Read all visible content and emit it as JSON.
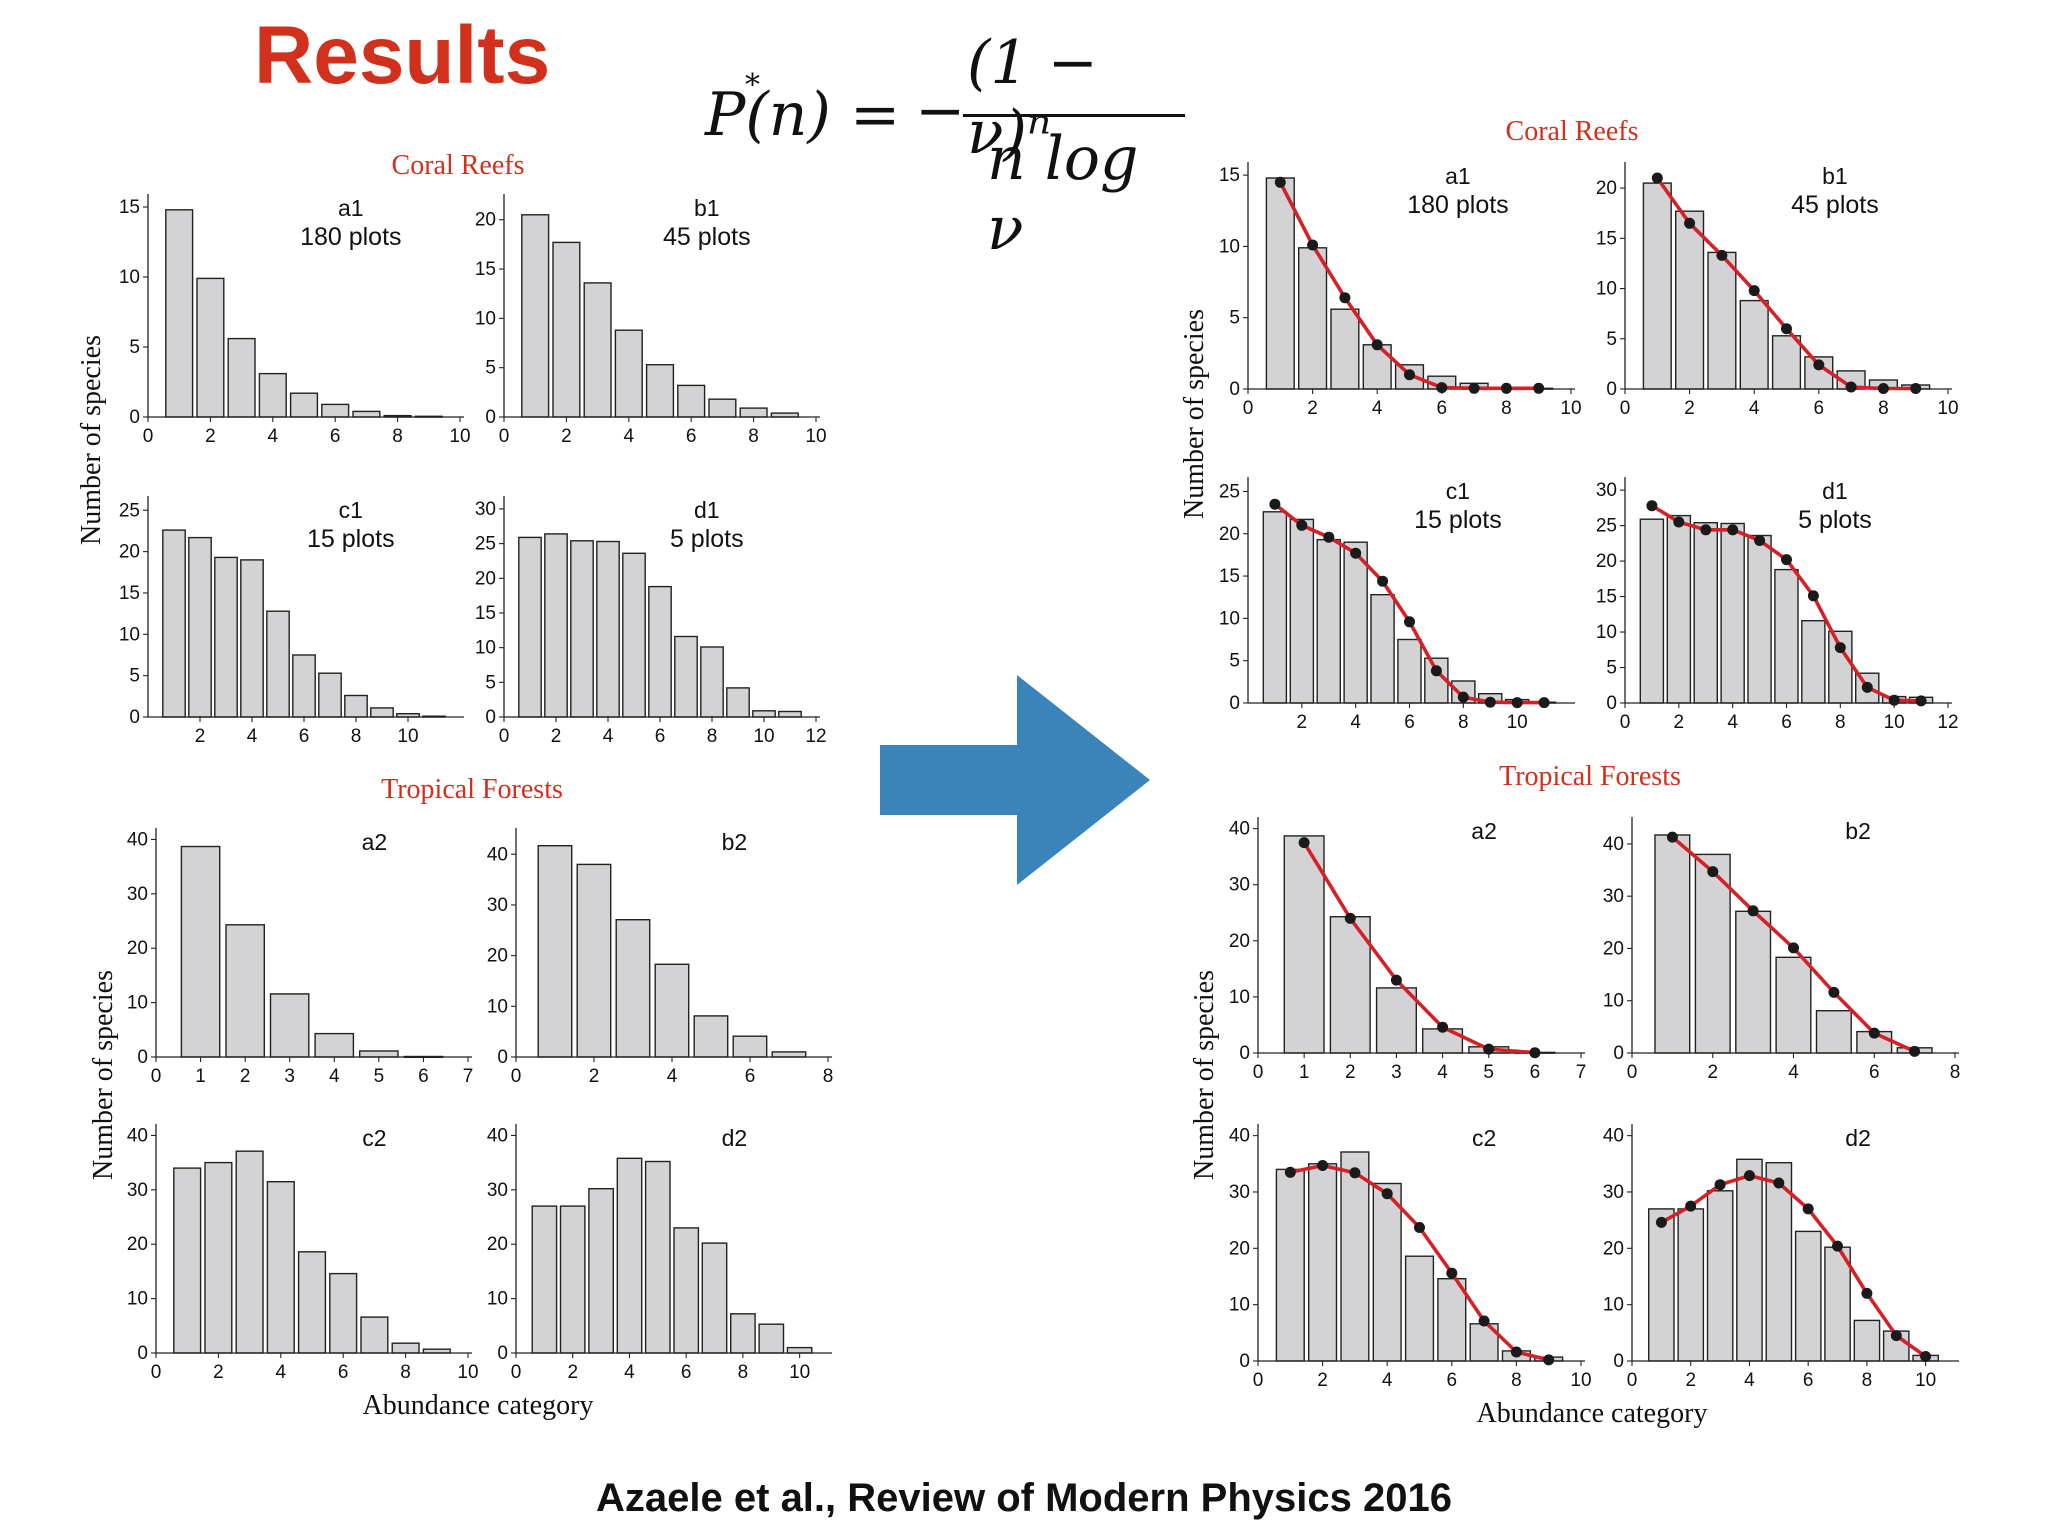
{
  "slide": {
    "title": "Results",
    "title_color": "#d0301c",
    "citation": "Azaele et al., Review of Modern Physics 2016"
  },
  "formula": {
    "lhs": "P(n)",
    "star": "*",
    "equals": "=",
    "minus": "−",
    "numerator": "(1 − ν)ⁿ",
    "denominator": "n log ν"
  },
  "style": {
    "section_color": "#d0301c",
    "bar_fill": "#d3d3d5",
    "bar_stroke": "#222222",
    "fit_color": "#d42027",
    "point_color": "#1a1a1a",
    "arrow_color": "#3a84bb"
  },
  "figures": [
    {
      "side": "left",
      "sections": [
        "Coral Reefs",
        "Tropical Forests"
      ],
      "ylabel": "Number of species",
      "xlabel": "Abundance category"
    },
    {
      "side": "right",
      "sections": [
        "Coral Reefs",
        "Tropical Forests"
      ],
      "ylabel": "Number of species",
      "xlabel": "Abundance category"
    }
  ],
  "chart_data": [
    {
      "id": "a1",
      "type": "bar",
      "label": "a1",
      "sublabel": "180 plots",
      "x": [
        1,
        2,
        3,
        4,
        5,
        6,
        7,
        8,
        9
      ],
      "values": [
        14.8,
        9.9,
        5.6,
        3.1,
        1.7,
        0.9,
        0.4,
        0.1,
        0.05
      ],
      "xlim": [
        0,
        10
      ],
      "ylim": [
        0,
        15.5
      ],
      "xticks": [
        0,
        2,
        4,
        6,
        8,
        10
      ],
      "yticks": [
        0,
        5,
        10,
        15
      ],
      "fit": [
        14.5,
        10.1,
        6.4,
        3.1,
        1.0,
        0.1,
        0.05,
        0.05,
        0.05
      ]
    },
    {
      "id": "b1",
      "type": "bar",
      "label": "b1",
      "sublabel": "45 plots",
      "x": [
        1,
        2,
        3,
        4,
        5,
        6,
        7,
        8,
        9
      ],
      "values": [
        20.5,
        17.7,
        13.6,
        8.8,
        5.3,
        3.2,
        1.8,
        0.9,
        0.4
      ],
      "xlim": [
        0,
        10
      ],
      "ylim": [
        0,
        22
      ],
      "xticks": [
        0,
        2,
        4,
        6,
        8,
        10
      ],
      "yticks": [
        0,
        5,
        10,
        15,
        20
      ],
      "fit": [
        21.0,
        16.5,
        13.3,
        9.8,
        6.0,
        2.4,
        0.2,
        0.05,
        0.05
      ]
    },
    {
      "id": "c1",
      "type": "bar",
      "label": "c1",
      "sublabel": "15 plots",
      "x": [
        1,
        2,
        3,
        4,
        5,
        6,
        7,
        8,
        9,
        10,
        11
      ],
      "values": [
        22.6,
        21.7,
        19.3,
        19.0,
        12.8,
        7.5,
        5.3,
        2.6,
        1.1,
        0.4,
        0.1
      ],
      "xlim": [
        0,
        12
      ],
      "ylim": [
        0,
        26
      ],
      "xticks": [
        2,
        4,
        6,
        8,
        10
      ],
      "yticks": [
        0,
        5,
        10,
        15,
        20,
        25
      ],
      "fit": [
        23.5,
        21.0,
        19.6,
        17.7,
        14.4,
        9.6,
        3.8,
        0.7,
        0.1,
        0.05,
        0.05
      ]
    },
    {
      "id": "d1",
      "type": "bar",
      "label": "d1",
      "sublabel": "5 plots",
      "x": [
        1,
        2,
        3,
        4,
        5,
        6,
        7,
        8,
        9,
        10,
        11
      ],
      "values": [
        25.9,
        26.4,
        25.4,
        25.3,
        23.6,
        18.8,
        11.6,
        10.1,
        4.2,
        0.9,
        0.8
      ],
      "xlim": [
        0,
        12
      ],
      "ylim": [
        0,
        31
      ],
      "xticks": [
        0,
        2,
        4,
        6,
        8,
        10,
        12
      ],
      "yticks": [
        0,
        5,
        10,
        15,
        20,
        25,
        30
      ],
      "fit": [
        27.8,
        25.5,
        24.4,
        24.4,
        22.9,
        20.2,
        15.1,
        7.8,
        2.2,
        0.4,
        0.3
      ]
    },
    {
      "id": "a2",
      "type": "bar",
      "label": "a2",
      "sublabel": "",
      "x": [
        1,
        2,
        3,
        4,
        5,
        6
      ],
      "values": [
        38.7,
        24.3,
        11.6,
        4.3,
        1.1,
        0.1
      ],
      "xlim": [
        0,
        7
      ],
      "ylim": [
        0,
        41
      ],
      "xticks": [
        0,
        1,
        2,
        3,
        4,
        5,
        6,
        7
      ],
      "yticks": [
        0,
        10,
        20,
        30,
        40
      ],
      "fit": [
        37.5,
        24.0,
        13.0,
        4.6,
        0.7,
        0.05
      ]
    },
    {
      "id": "b2",
      "type": "bar",
      "label": "b2",
      "sublabel": "",
      "x": [
        1,
        2,
        3,
        4,
        5,
        6,
        7
      ],
      "values": [
        41.7,
        38.0,
        27.1,
        18.3,
        8.1,
        4.1,
        1.0
      ],
      "xlim": [
        0,
        8
      ],
      "ylim": [
        0,
        44
      ],
      "xticks": [
        0,
        2,
        4,
        6,
        8
      ],
      "yticks": [
        0,
        10,
        20,
        30,
        40
      ],
      "fit": [
        41.3,
        34.7,
        27.2,
        20.1,
        11.6,
        3.8,
        0.3
      ]
    },
    {
      "id": "c2",
      "type": "bar",
      "label": "c2",
      "sublabel": "",
      "x": [
        1,
        2,
        3,
        4,
        5,
        6,
        7,
        8,
        9
      ],
      "values": [
        34.0,
        35.0,
        37.1,
        31.5,
        18.6,
        14.6,
        6.6,
        1.8,
        0.7
      ],
      "xlim": [
        0,
        10
      ],
      "ylim": [
        0,
        41
      ],
      "xticks": [
        0,
        2,
        4,
        6,
        8,
        10
      ],
      "yticks": [
        0,
        10,
        20,
        30,
        40
      ],
      "fit": [
        33.5,
        34.7,
        33.4,
        29.7,
        23.7,
        15.6,
        7.1,
        1.6,
        0.2
      ]
    },
    {
      "id": "d2",
      "type": "bar",
      "label": "d2",
      "sublabel": "",
      "x": [
        1,
        2,
        3,
        4,
        5,
        6,
        7,
        8,
        9,
        10
      ],
      "values": [
        27.0,
        27.0,
        30.2,
        35.8,
        35.2,
        23.0,
        20.2,
        7.2,
        5.3,
        1.0
      ],
      "xlim": [
        0,
        11
      ],
      "ylim": [
        0,
        41
      ],
      "xticks": [
        0,
        2,
        4,
        6,
        8,
        10
      ],
      "yticks": [
        0,
        10,
        20,
        30,
        40
      ],
      "fit": [
        24.6,
        27.5,
        31.3,
        32.9,
        31.6,
        27.0,
        20.4,
        12.0,
        4.5,
        0.8
      ]
    }
  ]
}
